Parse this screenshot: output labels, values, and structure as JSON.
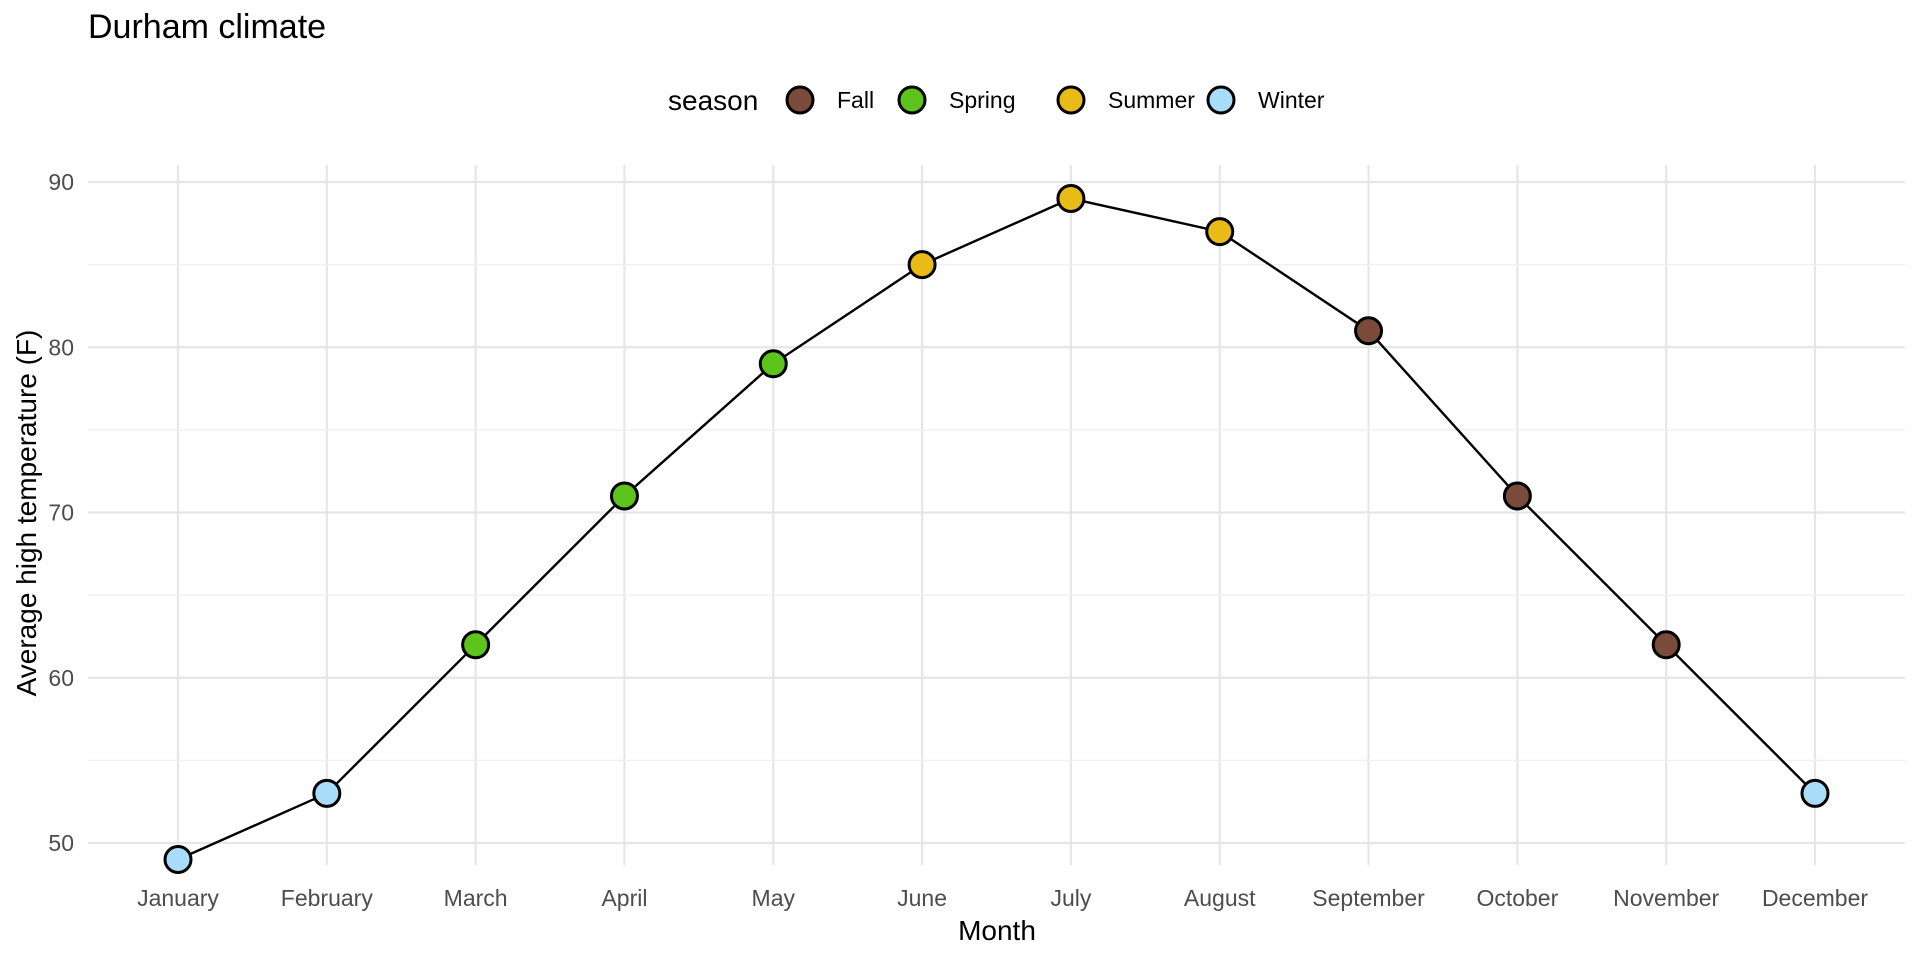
{
  "chart_data": {
    "type": "line",
    "title": "Durham climate",
    "xlabel": "Month",
    "ylabel": "Average high temperature (F)",
    "categories": [
      "January",
      "February",
      "March",
      "April",
      "May",
      "June",
      "July",
      "August",
      "September",
      "October",
      "November",
      "December"
    ],
    "series": [
      {
        "values": [
          49,
          53,
          62,
          71,
          79,
          85,
          89,
          87,
          81,
          71,
          62,
          53
        ],
        "season": [
          "Winter",
          "Winter",
          "Spring",
          "Spring",
          "Spring",
          "Summer",
          "Summer",
          "Summer",
          "Fall",
          "Fall",
          "Fall",
          "Winter"
        ]
      }
    ],
    "yticks": [
      50,
      60,
      70,
      80,
      90
    ],
    "ylim": [
      47.9,
      91
    ],
    "grid": true,
    "legend": {
      "title": "season",
      "position": "top",
      "entries": [
        "Fall",
        "Spring",
        "Summer",
        "Winter"
      ]
    },
    "colors": {
      "Fall": "#7a4a3a",
      "Spring": "#5cc41a",
      "Summer": "#e8bb16",
      "Winter": "#a9dcf9",
      "line": "#000000",
      "grid": "#e6e6e6"
    }
  }
}
